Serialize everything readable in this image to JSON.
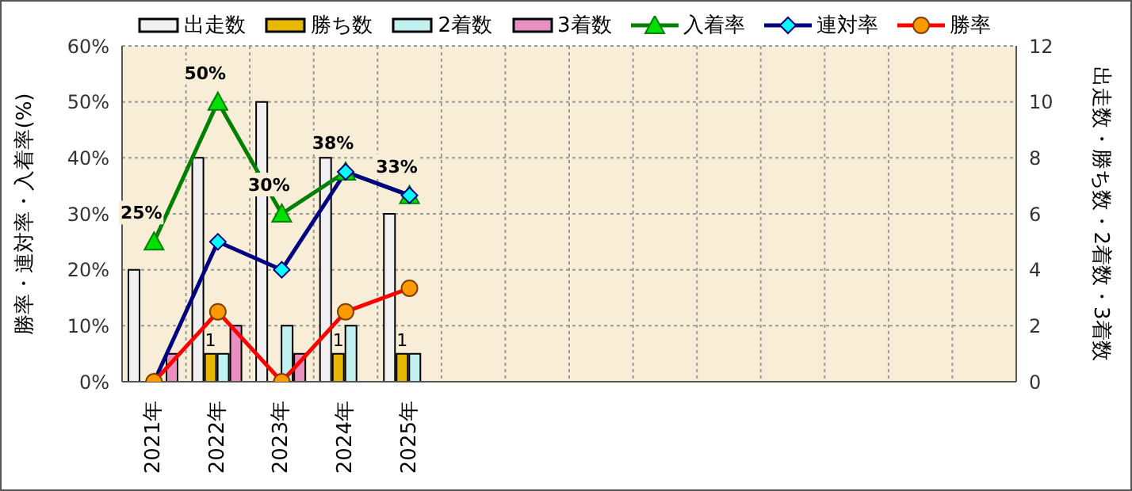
{
  "chart_data": {
    "type": "bar",
    "categories": [
      "2021年",
      "2022年",
      "2023年",
      "2024年",
      "2025年",
      null,
      null,
      null,
      null,
      null,
      null,
      null,
      null,
      null
    ],
    "ylabel": "勝率・連対率・入着率(%)",
    "y2label": "出走数・勝ち数・2着数・3着数",
    "ylim": [
      0,
      60
    ],
    "yticks": [
      {
        "value": 0,
        "label": "0%"
      },
      {
        "value": 10,
        "label": "10%"
      },
      {
        "value": 20,
        "label": "20%"
      },
      {
        "value": 30,
        "label": "30%"
      },
      {
        "value": 40,
        "label": "40%"
      },
      {
        "value": 50,
        "label": "50%"
      },
      {
        "value": 60,
        "label": "60%"
      }
    ],
    "y2lim": [
      0,
      12
    ],
    "y2ticks": [
      0,
      2,
      4,
      6,
      8,
      10,
      12
    ],
    "grid": true,
    "legend": "top",
    "series": [
      {
        "name": "出走数",
        "axis": "y2",
        "color": "#f0f0f0",
        "values": [
          4,
          8,
          10,
          8,
          6,
          null,
          null,
          null,
          null,
          null,
          null,
          null,
          null,
          null
        ]
      },
      {
        "name": "勝ち数",
        "axis": "y2",
        "color": "#e8b800",
        "values": [
          0,
          1,
          0,
          1,
          1,
          null,
          null,
          null,
          null,
          null,
          null,
          null,
          null,
          null
        ],
        "value_labels": [
          null,
          "1",
          null,
          "1",
          "1",
          null,
          null,
          null,
          null,
          null,
          null,
          null,
          null,
          null
        ]
      },
      {
        "name": "2着数",
        "axis": "y2",
        "color": "#c0f0f0",
        "values": [
          0,
          1,
          2,
          2,
          1,
          null,
          null,
          null,
          null,
          null,
          null,
          null,
          null,
          null
        ]
      },
      {
        "name": "3着数",
        "axis": "y2",
        "color": "#e890c0",
        "values": [
          1,
          2,
          1,
          0,
          0,
          null,
          null,
          null,
          null,
          null,
          null,
          null,
          null,
          null
        ]
      },
      {
        "name": "入着率",
        "type": "line",
        "color": "#008000",
        "marker": "triangle",
        "values": [
          25,
          50,
          30,
          37.5,
          33.3,
          null,
          null,
          null,
          null,
          null,
          null,
          null,
          null,
          null
        ],
        "value_labels": [
          "25%",
          "50%",
          "30%",
          "38%",
          "33%",
          null,
          null,
          null,
          null,
          null,
          null,
          null,
          null,
          null
        ]
      },
      {
        "name": "連対率",
        "type": "line",
        "color": "#000080",
        "marker": "diamond",
        "values": [
          0,
          25,
          20,
          37.5,
          33.3,
          null,
          null,
          null,
          null,
          null,
          null,
          null,
          null,
          null
        ]
      },
      {
        "name": "勝率",
        "type": "line",
        "color": "#ff0000",
        "marker": "circle",
        "values": [
          0,
          12.5,
          0,
          12.5,
          16.7,
          null,
          null,
          null,
          null,
          null,
          null,
          null,
          null,
          null
        ]
      }
    ]
  }
}
